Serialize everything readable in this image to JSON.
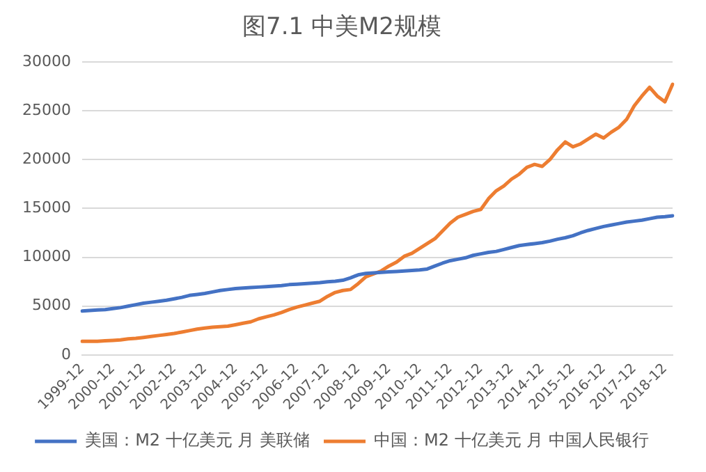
{
  "chart_data": {
    "type": "line",
    "title": "图7.1 中美M2规模",
    "categories": [
      "1999-12",
      null,
      null,
      null,
      "2000-12",
      null,
      null,
      null,
      "2001-12",
      null,
      null,
      null,
      "2002-12",
      null,
      null,
      null,
      "2003-12",
      null,
      null,
      null,
      "2004-12",
      null,
      null,
      null,
      "2005-12",
      null,
      null,
      null,
      "2006-12",
      null,
      null,
      null,
      "2007-12",
      null,
      null,
      null,
      "2008-12",
      null,
      null,
      null,
      "2009-12",
      null,
      null,
      null,
      "2010-12",
      null,
      null,
      null,
      "2011-12",
      null,
      null,
      null,
      "2012-12",
      null,
      null,
      null,
      "2013-12",
      null,
      null,
      null,
      "2014-12",
      null,
      null,
      null,
      "2015-12",
      null,
      null,
      null,
      "2016-12",
      null,
      null,
      null,
      "2017-12",
      null,
      null,
      null,
      "2018-12",
      null
    ],
    "series": [
      {
        "name": "美国：M2 十亿美元 月 美联储",
        "color": "#4472c4",
        "values": [
          4500,
          4550,
          4600,
          4650,
          4750,
          4850,
          5000,
          5150,
          5300,
          5400,
          5500,
          5600,
          5750,
          5900,
          6100,
          6200,
          6300,
          6450,
          6600,
          6700,
          6800,
          6850,
          6900,
          6950,
          7000,
          7050,
          7100,
          7200,
          7250,
          7300,
          7350,
          7400,
          7500,
          7550,
          7650,
          7900,
          8200,
          8350,
          8400,
          8450,
          8500,
          8550,
          8600,
          8650,
          8700,
          8800,
          9100,
          9400,
          9650,
          9800,
          9950,
          10200,
          10350,
          10500,
          10600,
          10800,
          11000,
          11200,
          11300,
          11400,
          11500,
          11650,
          11850,
          12000,
          12200,
          12500,
          12750,
          12950,
          13150,
          13300,
          13450,
          13600,
          13700,
          13800,
          13950,
          14100,
          14150,
          14250
        ]
      },
      {
        "name": "中国：M2 十亿美元 月 中国人民银行",
        "color": "#ed7d31",
        "values": [
          1400,
          1400,
          1400,
          1450,
          1500,
          1550,
          1650,
          1700,
          1800,
          1900,
          2000,
          2100,
          2200,
          2350,
          2500,
          2650,
          2750,
          2850,
          2900,
          2950,
          3100,
          3250,
          3400,
          3700,
          3900,
          4100,
          4350,
          4650,
          4900,
          5100,
          5300,
          5500,
          6000,
          6400,
          6600,
          6700,
          7300,
          8000,
          8300,
          8600,
          9100,
          9500,
          10100,
          10400,
          10900,
          11400,
          11900,
          12700,
          13500,
          14100,
          14400,
          14700,
          14900,
          16000,
          16800,
          17300,
          18000,
          18500,
          19200,
          19500,
          19300,
          20000,
          21000,
          21800,
          21300,
          21600,
          22100,
          22600,
          22200,
          22800,
          23300,
          24100,
          25500,
          26500,
          27400,
          26500,
          25900,
          27700
        ]
      }
    ],
    "ylim": [
      0,
      30000
    ],
    "yticks": [
      0,
      5000,
      10000,
      15000,
      20000,
      25000,
      30000
    ],
    "grid": "y",
    "legend": "bottom",
    "marker": "none",
    "line_style": "solid"
  }
}
